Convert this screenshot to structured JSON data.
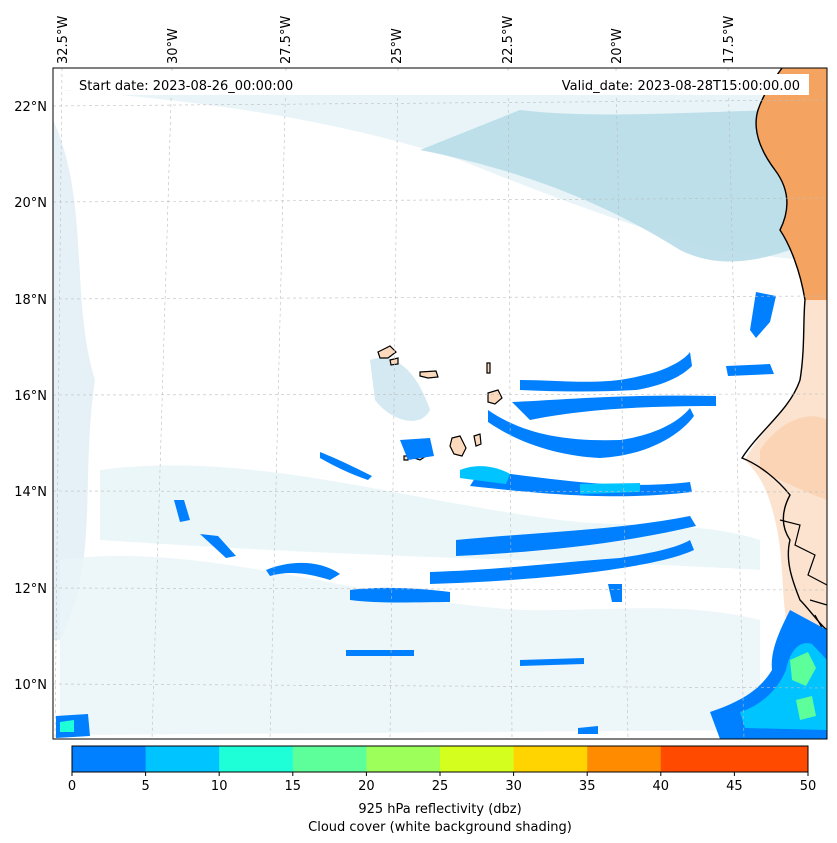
{
  "info": {
    "start_date": "Start date: 2023-08-26_00:00:00",
    "valid_date": "Valid_date: 2023-08-28T15:00:00.00"
  },
  "longitude_labels": [
    "32.5°W",
    "30°W",
    "27.5°W",
    "25°W",
    "22.5°W",
    "20°W",
    "17.5°W"
  ],
  "latitude_labels": [
    "22°N",
    "20°N",
    "18°N",
    "16°N",
    "14°N",
    "12°N",
    "10°N"
  ],
  "colorbar": {
    "ticks": [
      "0",
      "5",
      "10",
      "15",
      "20",
      "25",
      "30",
      "35",
      "40",
      "45",
      "50"
    ],
    "colors": [
      "#0080ff",
      "#00c4ff",
      "#1effd8",
      "#5cff9a",
      "#9cff5a",
      "#d4ff1e",
      "#ffd400",
      "#ff8c00",
      "#ff4a00"
    ],
    "title_line1": "925 hPa reflectivity (dbz)",
    "title_line2": "Cloud cover (white background shading)"
  },
  "colors": {
    "cloud_light": "#d8ecf3",
    "cloud_medium": "#b4dbe8",
    "land_orange": "#f4a460",
    "land_light": "#fbd9bc",
    "coastline": "#000000",
    "reflectivity_low": "#0080ff",
    "reflectivity_mid": "#00c4ff",
    "reflectivity_high": "#5cff9a"
  }
}
